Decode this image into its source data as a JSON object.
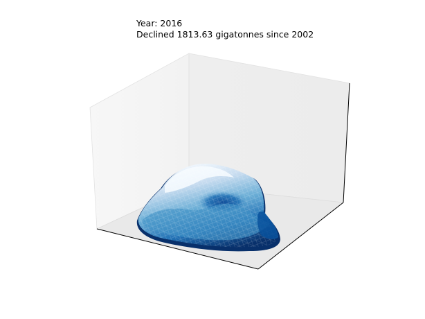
{
  "chart_data": {
    "type": "surface3d",
    "title_lines": [
      "Year: 2016",
      "Declined 1813.63 gigatonnes since 2002"
    ],
    "axis_ticks": "off",
    "panes": "light gray",
    "colormap": "Blues",
    "surface": {
      "shape": "ice-sheet mound with central depression",
      "height_peak": "near back-left ridge",
      "color_low": "#08306b",
      "color_high": "#f7fbff"
    }
  }
}
